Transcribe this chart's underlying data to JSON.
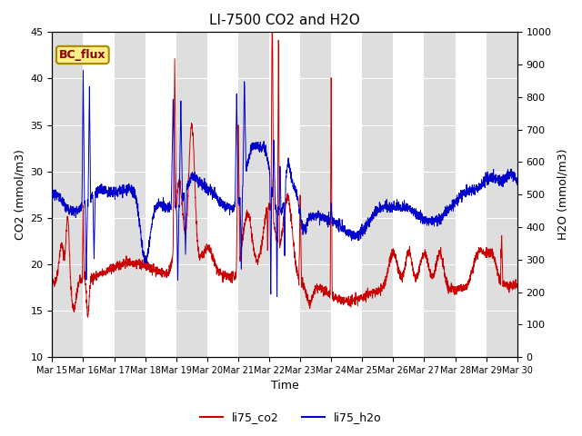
{
  "title": "LI-7500 CO2 and H2O",
  "xlabel": "Time",
  "ylabel_left": "CO2 (mmol/m3)",
  "ylabel_right": "H2O (mmol/m3)",
  "ylim_left": [
    10,
    45
  ],
  "ylim_right": [
    0,
    1000
  ],
  "yticks_left": [
    10,
    15,
    20,
    25,
    30,
    35,
    40,
    45
  ],
  "yticks_right": [
    0,
    100,
    200,
    300,
    400,
    500,
    600,
    700,
    800,
    900,
    1000
  ],
  "xtick_labels": [
    "Mar 15",
    "Mar 16",
    "Mar 17",
    "Mar 18",
    "Mar 19",
    "Mar 20",
    "Mar 21",
    "Mar 22",
    "Mar 23",
    "Mar 24",
    "Mar 25",
    "Mar 26",
    "Mar 27",
    "Mar 28",
    "Mar 29",
    "Mar 30"
  ],
  "annotation_text": "BC_flux",
  "annotation_bg": "#ffee88",
  "annotation_border": "#aa8800",
  "color_co2": "#cc0000",
  "color_h2o": "#0000cc",
  "legend_co2": "li75_co2",
  "legend_h2o": "li75_h2o",
  "band_color": "#dedede",
  "band_alpha": 1.0,
  "figsize": [
    6.4,
    4.8
  ],
  "dpi": 100
}
